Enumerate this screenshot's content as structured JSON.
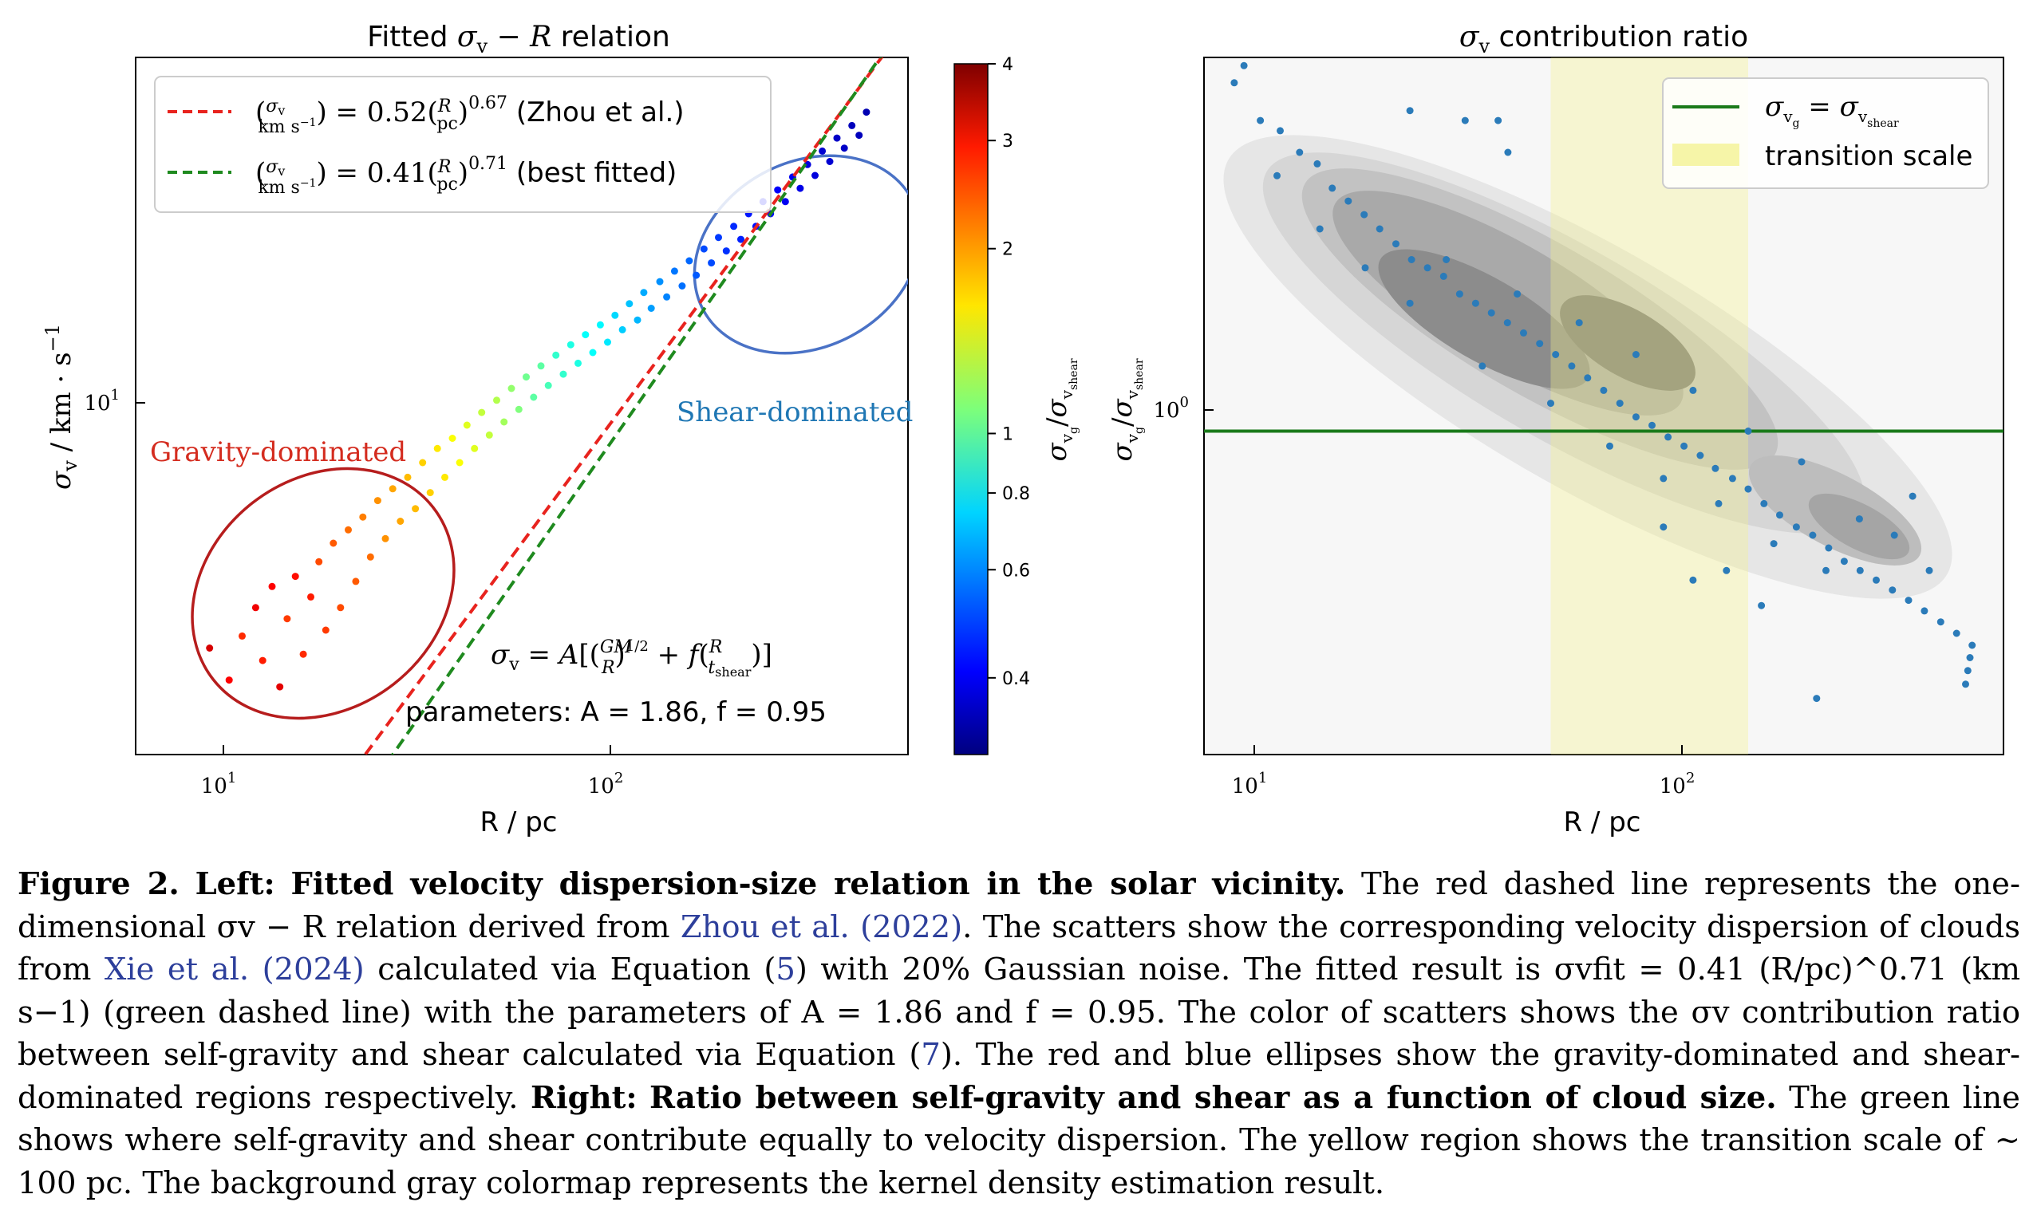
{
  "chart_data": [
    {
      "type": "scatter",
      "title": "Fitted σv − R relation",
      "xlabel": "R / pc",
      "ylabel": "σv / km · s−1",
      "xscale": "log",
      "yscale": "log",
      "xlim": [
        6.0,
        520
      ],
      "ylim": [
        4.2,
        31
      ],
      "xticks": [
        {
          "value": 10,
          "label": "10",
          "sup": "1"
        },
        {
          "value": 100,
          "label": "10",
          "sup": "2"
        }
      ],
      "yticks": [
        {
          "value": 10,
          "label": "10",
          "sup": "1"
        }
      ],
      "lines": [
        {
          "name": "(σv/km s−1) = 0.52(R/pc)^0.67 (Zhou et al.)",
          "color": "#e8231e",
          "style": "dashed",
          "A": 0.52,
          "p": 0.67
        },
        {
          "name": "(σv/km s−1) = 0.41(R/pc)^0.71 (best fitted)",
          "color": "#1f8a1f",
          "style": "dashed",
          "A": 0.41,
          "p": 0.71
        }
      ],
      "legend_location": "upper-left",
      "annotations": [
        {
          "text": "Gravity-dominated",
          "color": "#d42c1f"
        },
        {
          "text": "Shear-dominated",
          "color": "#1f77b4"
        },
        {
          "text": "parameters: A = 1.86, f = 0.95",
          "color": "#000000"
        }
      ],
      "formula": "σv = A[(GM/R)^(1/2) + f(R/t_shear)]",
      "regions": [
        {
          "name": "gravity-dominated",
          "shape": "ellipse",
          "color": "#b22222",
          "center": [
            17,
            6.2
          ]
        },
        {
          "name": "shear-dominated",
          "shape": "ellipse",
          "color": "#4b73c8",
          "center": [
            280,
            17
          ]
        }
      ],
      "colorbar": {
        "label": "σvg/σvshear",
        "scale": "log",
        "range": [
          0.3,
          4
        ],
        "colormap": "jet",
        "ticks": [
          {
            "value": 4,
            "label": "4"
          },
          {
            "value": 3,
            "label": "3"
          },
          {
            "value": 2,
            "label": "2"
          },
          {
            "value": 1,
            "label": "1"
          },
          {
            "value": 0.8,
            "label": "0.8"
          },
          {
            "value": 0.6,
            "label": "0.6"
          },
          {
            "value": 0.4,
            "label": "0.4"
          }
        ]
      },
      "points_description": "~700 clouds; ratio decreases with size (≈3 at R≈10 pc to ≈0.4 at R≈400 pc)",
      "points": [
        [
          9.2,
          5.7,
          3.2
        ],
        [
          10.3,
          5.2,
          2.9
        ],
        [
          11.1,
          5.9,
          2.6
        ],
        [
          12.0,
          6.4,
          3.0
        ],
        [
          12.5,
          5.5,
          2.7
        ],
        [
          13.2,
          6.8,
          2.9
        ],
        [
          13.8,
          5.1,
          3.1
        ],
        [
          14.4,
          6.2,
          2.5
        ],
        [
          15.1,
          7.0,
          2.8
        ],
        [
          15.8,
          5.6,
          2.6
        ],
        [
          16.5,
          6.6,
          2.7
        ],
        [
          17.3,
          7.3,
          2.4
        ],
        [
          18.0,
          6.0,
          2.5
        ],
        [
          18.8,
          7.7,
          2.3
        ],
        [
          19.6,
          6.4,
          2.4
        ],
        [
          20.5,
          8.0,
          2.2
        ],
        [
          21.4,
          6.9,
          2.3
        ],
        [
          22.3,
          8.3,
          2.1
        ],
        [
          23.3,
          7.4,
          2.2
        ],
        [
          24.3,
          8.7,
          2.0
        ],
        [
          25.4,
          7.8,
          2.0
        ],
        [
          26.5,
          9.0,
          1.9
        ],
        [
          27.7,
          8.2,
          1.9
        ],
        [
          28.9,
          9.3,
          1.8
        ],
        [
          30.2,
          8.5,
          1.8
        ],
        [
          31.5,
          9.7,
          1.7
        ],
        [
          32.9,
          8.9,
          1.7
        ],
        [
          34.3,
          10.1,
          1.6
        ],
        [
          35.8,
          9.3,
          1.6
        ],
        [
          37.4,
          10.4,
          1.5
        ],
        [
          39.0,
          9.7,
          1.5
        ],
        [
          40.7,
          10.8,
          1.4
        ],
        [
          42.5,
          10.1,
          1.4
        ],
        [
          44.3,
          11.2,
          1.3
        ],
        [
          46.3,
          10.5,
          1.3
        ],
        [
          48.3,
          11.6,
          1.25
        ],
        [
          50.4,
          10.9,
          1.2
        ],
        [
          52.6,
          12.0,
          1.15
        ],
        [
          54.9,
          11.3,
          1.1
        ],
        [
          57.3,
          12.4,
          1.05
        ],
        [
          59.8,
          11.7,
          1.0
        ],
        [
          62.4,
          12.8,
          1.0
        ],
        [
          65.1,
          12.1,
          0.95
        ],
        [
          68.0,
          13.2,
          0.9
        ],
        [
          71.0,
          12.5,
          0.9
        ],
        [
          74.1,
          13.6,
          0.85
        ],
        [
          77.3,
          12.9,
          0.85
        ],
        [
          80.7,
          14.0,
          0.8
        ],
        [
          84.2,
          13.3,
          0.8
        ],
        [
          87.9,
          14.4,
          0.78
        ],
        [
          91.7,
          13.7,
          0.75
        ],
        [
          95.7,
          14.8,
          0.72
        ],
        [
          99.9,
          14.2,
          0.7
        ],
        [
          104,
          15.3,
          0.68
        ],
        [
          109,
          14.6,
          0.66
        ],
        [
          113,
          15.8,
          0.64
        ],
        [
          118,
          15.1,
          0.62
        ],
        [
          124,
          16.3,
          0.6
        ],
        [
          129,
          15.6,
          0.58
        ],
        [
          135,
          16.8,
          0.56
        ],
        [
          141,
          16.1,
          0.55
        ],
        [
          147,
          17.3,
          0.54
        ],
        [
          153,
          16.6,
          0.52
        ],
        [
          160,
          17.9,
          0.5
        ],
        [
          167,
          17.2,
          0.5
        ],
        [
          174,
          18.5,
          0.48
        ],
        [
          182,
          17.8,
          0.47
        ],
        [
          190,
          19.1,
          0.46
        ],
        [
          198,
          18.4,
          0.45
        ],
        [
          207,
          19.8,
          0.44
        ],
        [
          216,
          19.1,
          0.43
        ],
        [
          225,
          20.5,
          0.42
        ],
        [
          235,
          19.8,
          0.42
        ],
        [
          245,
          21.2,
          0.41
        ],
        [
          256,
          20.5,
          0.4
        ],
        [
          267,
          22.0,
          0.4
        ],
        [
          279,
          21.3,
          0.39
        ],
        [
          291,
          22.8,
          0.38
        ],
        [
          304,
          22.1,
          0.38
        ],
        [
          317,
          23.7,
          0.37
        ],
        [
          331,
          23.0,
          0.37
        ],
        [
          345,
          24.6,
          0.36
        ],
        [
          360,
          23.9,
          0.36
        ],
        [
          376,
          25.5,
          0.35
        ],
        [
          392,
          24.8,
          0.35
        ],
        [
          409,
          26.5,
          0.34
        ]
      ]
    },
    {
      "type": "scatter",
      "title": "σv contribution ratio",
      "xlabel": "R / pc",
      "ylabel": "σvg/σvshear",
      "xscale": "log",
      "yscale": "log",
      "xlim": [
        8.2,
        530
      ],
      "ylim": [
        0.33,
        3.6
      ],
      "xticks": [
        {
          "value": 10,
          "label": "10",
          "sup": "1"
        },
        {
          "value": 100,
          "label": "10",
          "sup": "2"
        }
      ],
      "yticks": [
        {
          "value": 1,
          "label": "10",
          "sup": "0"
        }
      ],
      "reference_line": {
        "name": "σvg = σvshear",
        "y": 1.0,
        "color": "#1a7a1a"
      },
      "transition_band": {
        "name": "transition scale",
        "x_range": [
          50,
          140
        ],
        "color": "#f7f6b0"
      },
      "legend_location": "upper-right",
      "background": "kernel density estimation (gray)",
      "point_color": "#2b7bb9",
      "points": [
        [
          9.6,
          3.3
        ],
        [
          10.1,
          3.5
        ],
        [
          11.0,
          2.9
        ],
        [
          12.2,
          2.8
        ],
        [
          13.5,
          2.6
        ],
        [
          14.8,
          2.5
        ],
        [
          16.0,
          2.3
        ],
        [
          17.4,
          2.2
        ],
        [
          18.9,
          2.1
        ],
        [
          20.5,
          2.0
        ],
        [
          22.3,
          1.9
        ],
        [
          24.2,
          1.8
        ],
        [
          26.3,
          1.75
        ],
        [
          28.6,
          1.7
        ],
        [
          31.1,
          1.6
        ],
        [
          33.8,
          1.55
        ],
        [
          36.7,
          1.5
        ],
        [
          39.9,
          1.45
        ],
        [
          43.4,
          1.4
        ],
        [
          47.2,
          1.35
        ],
        [
          51.3,
          1.3
        ],
        [
          55.8,
          1.25
        ],
        [
          60.6,
          1.2
        ],
        [
          65.9,
          1.15
        ],
        [
          71.7,
          1.1
        ],
        [
          78.0,
          1.05
        ],
        [
          84.8,
          1.02
        ],
        [
          92.2,
          0.98
        ],
        [
          100.2,
          0.95
        ],
        [
          109,
          0.92
        ],
        [
          118,
          0.88
        ],
        [
          129,
          0.85
        ],
        [
          140,
          0.82
        ],
        [
          152,
          0.78
        ],
        [
          165,
          0.75
        ],
        [
          180,
          0.72
        ],
        [
          196,
          0.7
        ],
        [
          213,
          0.67
        ],
        [
          231,
          0.64
        ],
        [
          251,
          0.62
        ],
        [
          273,
          0.6
        ],
        [
          297,
          0.58
        ],
        [
          323,
          0.56
        ],
        [
          351,
          0.54
        ],
        [
          382,
          0.52
        ],
        [
          415,
          0.5
        ],
        [
          435,
          0.42
        ],
        [
          440,
          0.44
        ],
        [
          445,
          0.46
        ],
        [
          450,
          0.48
        ],
        [
          12,
          2.4
        ],
        [
          15,
          2.0
        ],
        [
          19,
          1.75
        ],
        [
          24,
          1.55
        ],
        [
          29,
          1.8
        ],
        [
          35,
          1.25
        ],
        [
          42,
          1.6
        ],
        [
          50,
          1.1
        ],
        [
          58,
          1.45
        ],
        [
          68,
          0.95
        ],
        [
          78,
          1.3
        ],
        [
          90,
          0.85
        ],
        [
          105,
          1.15
        ],
        [
          120,
          0.78
        ],
        [
          140,
          1.0
        ],
        [
          160,
          0.68
        ],
        [
          185,
          0.9
        ],
        [
          210,
          0.62
        ],
        [
          250,
          0.74
        ],
        [
          300,
          0.7
        ],
        [
          330,
          0.8
        ],
        [
          360,
          0.62
        ],
        [
          40,
          2.6
        ],
        [
          38,
          2.9
        ],
        [
          32,
          2.9
        ],
        [
          24,
          3.0
        ],
        [
          90,
          0.72
        ],
        [
          105,
          0.6
        ],
        [
          125,
          0.62
        ],
        [
          150,
          0.55
        ],
        [
          200,
          0.4
        ]
      ]
    }
  ],
  "caption": {
    "figure_label": "Figure 2.",
    "left_label": "Left:",
    "left_title": "Fitted velocity dispersion-size relation in the solar vicinity.",
    "text_1": "The red dashed line represents the one-dimensional σv − R relation derived from",
    "cite_1": "Zhou et al. (2022)",
    "text_2": ". The scatters show the corresponding velocity dispersion of clouds from",
    "cite_2": "Xie et al. (2024)",
    "text_3": "calculated via Equation (",
    "eq_1": "5",
    "text_4": ") with 20% Gaussian noise. The fitted result is σvfit = 0.41 (R/pc)^0.71 (km s−1) (green dashed line) with the parameters of A = 1.86 and f = 0.95. The color of scatters shows the σv contribution ratio between self-gravity and shear calculated via Equation (",
    "eq_2": "7",
    "text_5": "). The red and blue ellipses show the gravity-dominated and shear-dominated regions respectively.",
    "right_label": "Right:",
    "right_title": "Ratio between self-gravity and shear as a function of cloud size.",
    "text_6": "The green line shows where self-gravity and shear contribute equally to velocity dispersion. The yellow region shows the transition scale of ∼ 100 pc. The background gray colormap represents the kernel density estimation result."
  }
}
